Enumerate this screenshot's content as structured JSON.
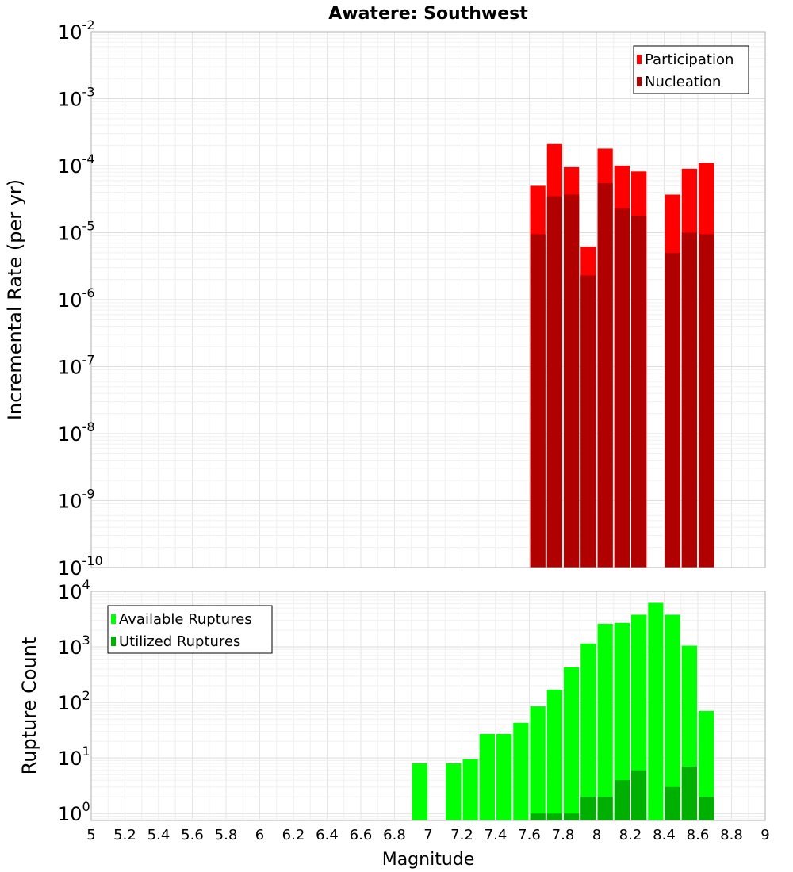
{
  "chart_data": [
    {
      "type": "bar",
      "title": "Awatere: Southwest",
      "xlabel": "",
      "ylabel": "Incremental Rate (per yr)",
      "yscale": "log",
      "xlim": [
        5,
        9
      ],
      "ylim": [
        1e-10,
        0.01
      ],
      "y_ticks": [
        {
          "base": "10",
          "exp": "-10",
          "value": 1e-10
        },
        {
          "base": "10",
          "exp": "-9",
          "value": 1e-09
        },
        {
          "base": "10",
          "exp": "-8",
          "value": 1e-08
        },
        {
          "base": "10",
          "exp": "-7",
          "value": 1e-07
        },
        {
          "base": "10",
          "exp": "-6",
          "value": 1e-06
        },
        {
          "base": "10",
          "exp": "-5",
          "value": 1e-05
        },
        {
          "base": "10",
          "exp": "-4",
          "value": 0.0001
        },
        {
          "base": "10",
          "exp": "-3",
          "value": 0.001
        },
        {
          "base": "10",
          "exp": "-2",
          "value": 0.01
        }
      ],
      "legend_position": "top-right",
      "bin_width": 0.1,
      "x": [
        7.65,
        7.75,
        7.85,
        7.95,
        8.05,
        8.15,
        8.25,
        8.35,
        8.45,
        8.55,
        8.65
      ],
      "series": [
        {
          "name": "Participation",
          "color": "#ff0000",
          "values": [
            5e-05,
            0.00021,
            9.5e-05,
            6.2e-06,
            0.00018,
            0.0001,
            8.2e-05,
            null,
            3.7e-05,
            9e-05,
            0.00011
          ]
        },
        {
          "name": "Nucleation",
          "color": "#b00000",
          "values": [
            9.5e-06,
            3.5e-05,
            3.7e-05,
            2.3e-06,
            5.5e-05,
            2.3e-05,
            1.8e-05,
            null,
            5e-06,
            1e-05,
            9.5e-06
          ]
        }
      ]
    },
    {
      "type": "bar",
      "title": "",
      "xlabel": "Magnitude",
      "ylabel": "Rupture Count",
      "yscale": "log",
      "xlim": [
        5,
        9
      ],
      "ylim": [
        0.75,
        10000
      ],
      "x_ticks": [
        "5",
        "5.2",
        "5.4",
        "5.6",
        "5.8",
        "6",
        "6.2",
        "6.4",
        "6.6",
        "6.8",
        "7",
        "7.2",
        "7.4",
        "7.6",
        "7.8",
        "8",
        "8.2",
        "8.4",
        "8.6",
        "8.8",
        "9"
      ],
      "y_ticks": [
        {
          "base": "10",
          "exp": "0",
          "value": 1
        },
        {
          "base": "10",
          "exp": "1",
          "value": 10
        },
        {
          "base": "10",
          "exp": "2",
          "value": 100
        },
        {
          "base": "10",
          "exp": "3",
          "value": 1000
        },
        {
          "base": "10",
          "exp": "4",
          "value": 10000
        }
      ],
      "legend_position": "top-left",
      "bin_width": 0.1,
      "x": [
        6.95,
        7.05,
        7.15,
        7.25,
        7.35,
        7.45,
        7.55,
        7.65,
        7.75,
        7.85,
        7.95,
        8.05,
        8.15,
        8.25,
        8.35,
        8.45,
        8.55,
        8.65
      ],
      "series": [
        {
          "name": "Available Ruptures",
          "color": "#00ff00",
          "values": [
            8,
            null,
            8,
            9.5,
            27,
            27,
            43,
            85,
            170,
            430,
            1150,
            2600,
            2700,
            3800,
            6200,
            3800,
            1050,
            70
          ]
        },
        {
          "name": "Utilized Ruptures",
          "color": "#00b000",
          "values": [
            null,
            null,
            null,
            null,
            null,
            null,
            null,
            1,
            1,
            1,
            2,
            2,
            4,
            6,
            null,
            3,
            7,
            2
          ]
        }
      ]
    }
  ]
}
